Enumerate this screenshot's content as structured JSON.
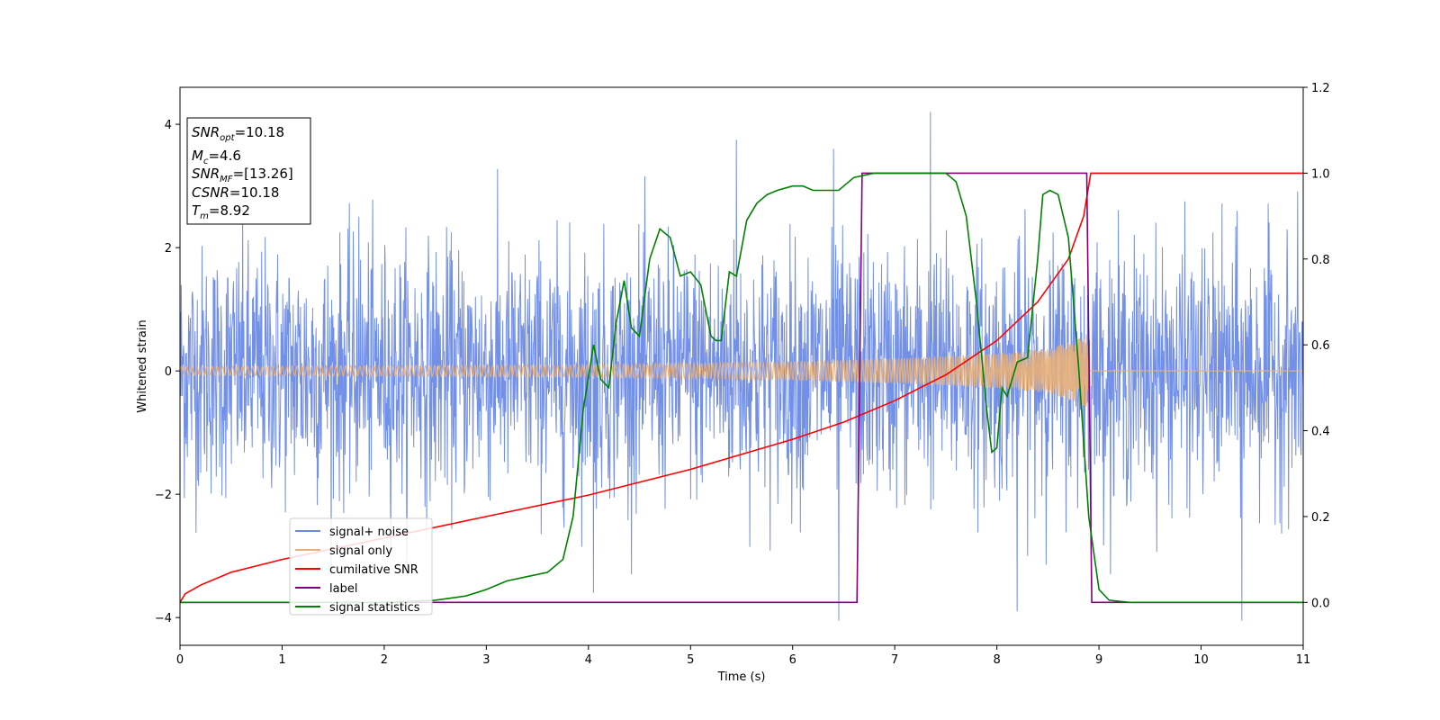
{
  "chart_data": {
    "type": "line",
    "xlabel": "Time (s)",
    "ylabel": "Whitened strain",
    "xlim": [
      0,
      11
    ],
    "ylim": [
      -4.45,
      4.6
    ],
    "y2lim": [
      -0.1,
      1.2
    ],
    "x_ticks": [
      0,
      1,
      2,
      3,
      4,
      5,
      6,
      7,
      8,
      9,
      10,
      11
    ],
    "y_ticks": [
      -4,
      -2,
      0,
      2,
      4
    ],
    "y2_ticks": [
      0.0,
      0.2,
      0.4,
      0.6,
      0.8,
      1.0,
      1.2
    ],
    "legend_position": "lower-left",
    "info_box": {
      "snr_opt": {
        "symbol": "SNR",
        "sub": "opt",
        "value": "=10.18"
      },
      "mc": {
        "symbol": "M",
        "sub": "c",
        "value": "=4.6"
      },
      "snr_mf": {
        "symbol": "SNR",
        "sub": "MF",
        "value": "=[13.26]"
      },
      "csnr": {
        "symbol": "CSNR",
        "sub": "",
        "value": "=10.18"
      },
      "tm": {
        "symbol": "T",
        "sub": "m",
        "value": "=8.92"
      }
    },
    "series": [
      {
        "name": "signal+ noise",
        "color": "#6b8ae6",
        "axis": "left",
        "kind": "noise",
        "noise_std": 1.0,
        "x_range": [
          0,
          11
        ],
        "spikes": [
          [
            1.75,
            2.5
          ],
          [
            6.4,
            3.6
          ],
          [
            6.45,
            -4.05
          ],
          [
            7.35,
            4.2
          ],
          [
            8.2,
            -3.9
          ],
          [
            10.4,
            -4.05
          ],
          [
            5.45,
            3.75
          ],
          [
            4.05,
            -3.6
          ]
        ]
      },
      {
        "name": "signal only",
        "color": "#e8b07a",
        "axis": "left",
        "kind": "chirp",
        "tc": 8.9,
        "amplitude": [
          [
            0,
            0.07
          ],
          [
            4,
            0.1
          ],
          [
            6,
            0.15
          ],
          [
            7,
            0.2
          ],
          [
            8,
            0.28
          ],
          [
            8.5,
            0.36
          ],
          [
            8.8,
            0.52
          ],
          [
            8.9,
            0.62
          ]
        ]
      },
      {
        "name": "cumilative SNR",
        "color": "#ff0000",
        "axis": "right",
        "x": [
          0,
          0.05,
          0.2,
          0.5,
          1,
          2,
          3,
          4,
          5,
          6,
          6.5,
          7,
          7.5,
          8,
          8.4,
          8.7,
          8.85,
          8.92,
          11
        ],
        "values": [
          0.0,
          0.02,
          0.04,
          0.07,
          0.1,
          0.15,
          0.2,
          0.25,
          0.31,
          0.38,
          0.42,
          0.47,
          0.53,
          0.61,
          0.7,
          0.8,
          0.9,
          1.0,
          1.0
        ]
      },
      {
        "name": "label",
        "color": "#800080",
        "axis": "right",
        "x": [
          0,
          6.63,
          6.68,
          8.88,
          8.93,
          11
        ],
        "values": [
          0,
          0,
          1,
          1,
          0,
          0
        ]
      },
      {
        "name": "signal statistics",
        "color": "#008000",
        "axis": "right",
        "x": [
          0,
          2.0,
          2.5,
          2.8,
          3.0,
          3.2,
          3.4,
          3.6,
          3.75,
          3.85,
          3.95,
          4.05,
          4.12,
          4.2,
          4.27,
          4.35,
          4.42,
          4.5,
          4.6,
          4.7,
          4.8,
          4.9,
          5.0,
          5.1,
          5.2,
          5.25,
          5.3,
          5.38,
          5.45,
          5.55,
          5.65,
          5.75,
          5.85,
          6.0,
          6.1,
          6.2,
          6.3,
          6.45,
          6.6,
          6.8,
          7.0,
          7.2,
          7.5,
          7.6,
          7.7,
          7.8,
          7.9,
          7.95,
          8.0,
          8.05,
          8.1,
          8.2,
          8.3,
          8.4,
          8.45,
          8.52,
          8.6,
          8.7,
          8.8,
          8.9,
          9.0,
          9.1,
          9.3,
          11
        ],
        "values": [
          0.0,
          0.0,
          0.005,
          0.015,
          0.03,
          0.05,
          0.06,
          0.07,
          0.1,
          0.2,
          0.45,
          0.6,
          0.52,
          0.5,
          0.65,
          0.75,
          0.64,
          0.62,
          0.8,
          0.87,
          0.85,
          0.76,
          0.77,
          0.74,
          0.62,
          0.61,
          0.61,
          0.77,
          0.76,
          0.89,
          0.93,
          0.95,
          0.96,
          0.97,
          0.97,
          0.96,
          0.96,
          0.96,
          0.99,
          1.0,
          1.0,
          1.0,
          1.0,
          0.98,
          0.9,
          0.7,
          0.45,
          0.35,
          0.36,
          0.5,
          0.48,
          0.56,
          0.57,
          0.8,
          0.95,
          0.96,
          0.95,
          0.85,
          0.55,
          0.2,
          0.03,
          0.005,
          0.0,
          0.0
        ]
      }
    ]
  }
}
